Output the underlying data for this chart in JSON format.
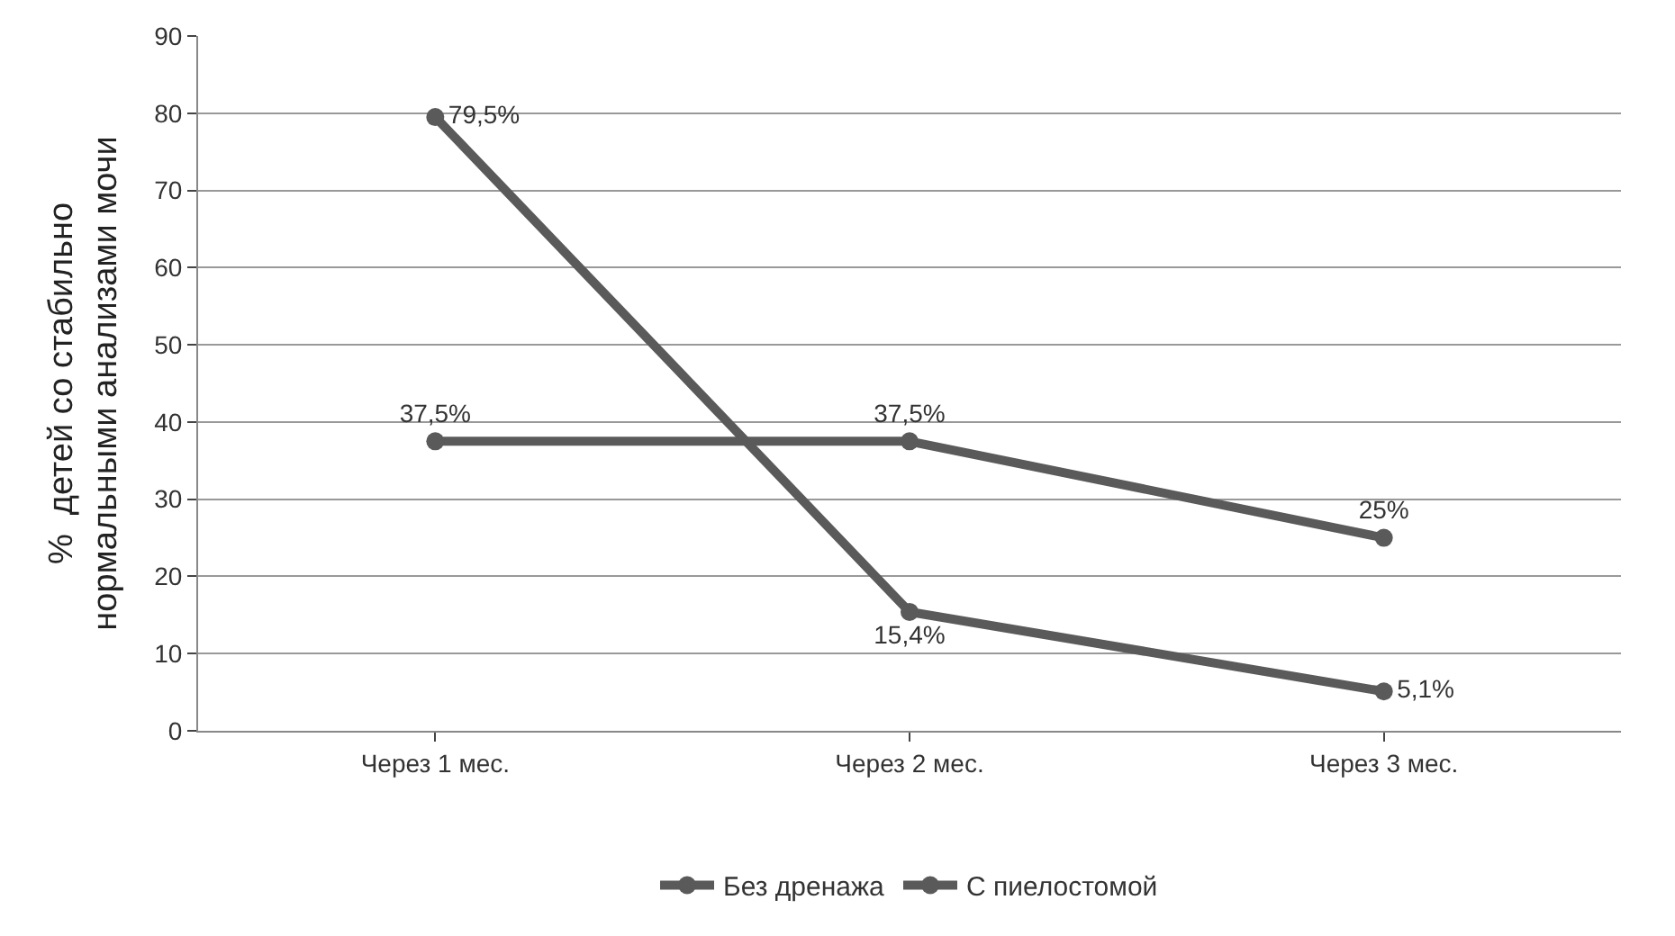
{
  "chart_data": {
    "type": "line",
    "ylabel": "%  детей со стабильно\nнормальными анализами мочи",
    "categories": [
      "Через 1 мес.",
      "Через 2 мес.",
      "Через 3 мес."
    ],
    "series": [
      {
        "name": "Без дренажа",
        "color": "#5a5a5a",
        "values": [
          79.5,
          15.4,
          5.1
        ],
        "value_labels": [
          "79,5%",
          "15,4%",
          "5,1%"
        ]
      },
      {
        "name": "С пиелостомой",
        "color": "#5a5a5a",
        "values": [
          37.5,
          37.5,
          25
        ],
        "value_labels": [
          "37,5%",
          "37,5%",
          "25%"
        ]
      }
    ],
    "ylim": [
      0,
      90
    ],
    "yticks": [
      0,
      10,
      20,
      30,
      40,
      50,
      60,
      70,
      80,
      90
    ],
    "grid": "y",
    "legend": "bottom",
    "marker": "circle",
    "line_style": "solid"
  }
}
